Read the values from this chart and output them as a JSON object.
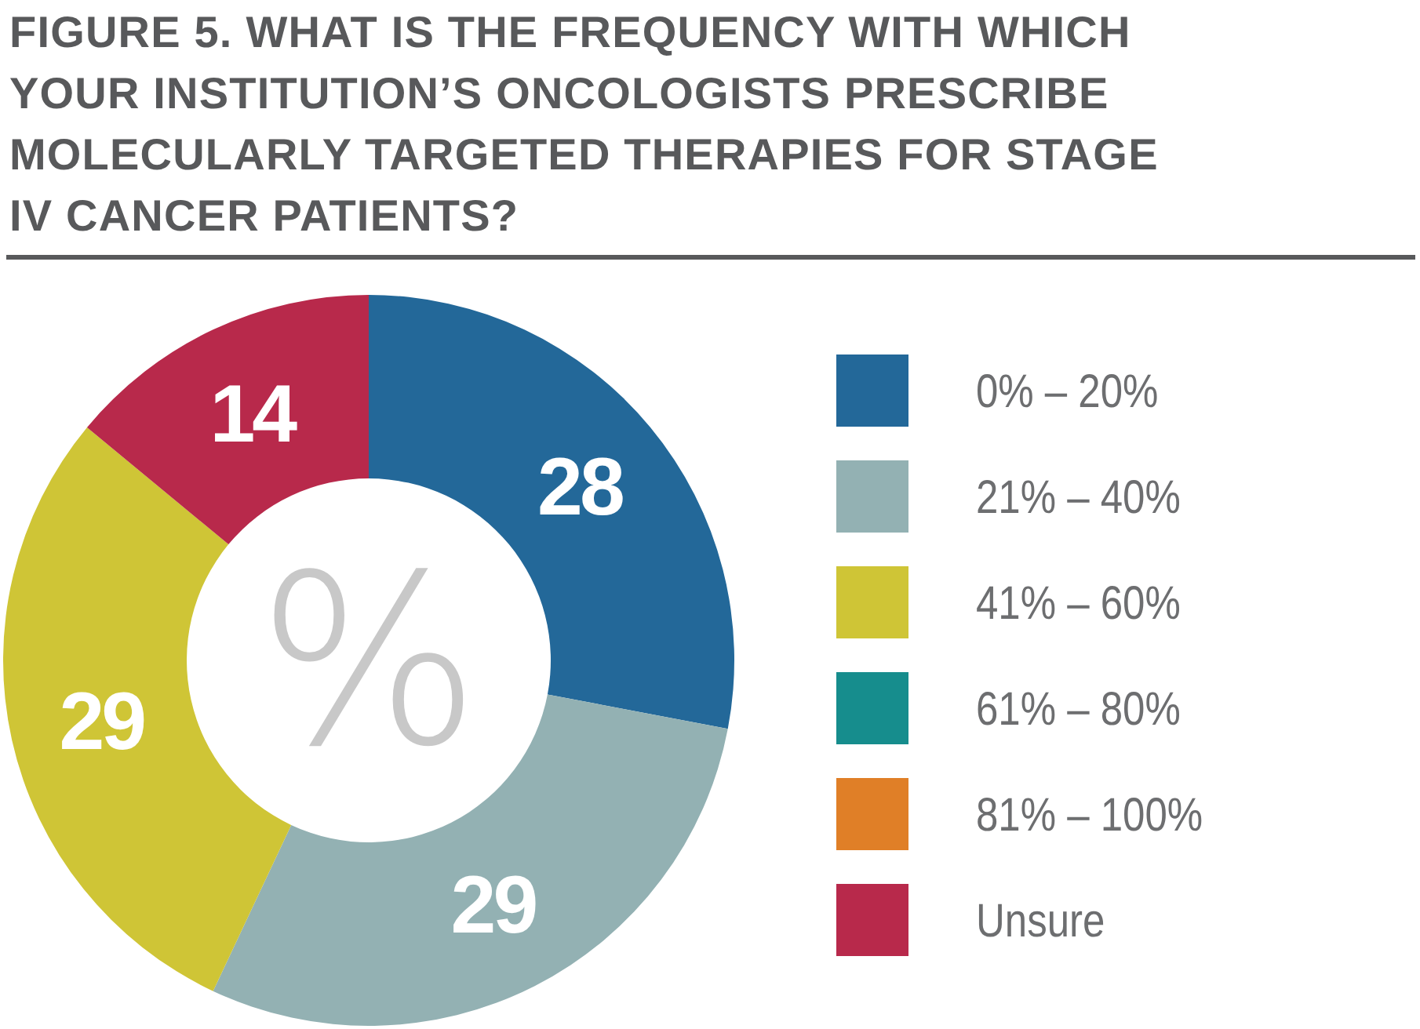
{
  "chart_data": {
    "type": "donut",
    "title": "FIGURE 5. WHAT IS THE FREQUENCY WITH WHICH YOUR INSTITUTION’S ONCOLOGISTS PRESCRIBE MOLECULARLY TARGETED THERAPIES FOR STAGE IV CANCER PATIENTS?",
    "categories": [
      "0% – 20%",
      "21% – 40%",
      "41% – 60%",
      "61% – 80%",
      "81% – 100%",
      "Unsure"
    ],
    "values": [
      28,
      29,
      29,
      0,
      0,
      14
    ],
    "colors": [
      "#236899",
      "#93b1b3",
      "#cfc536",
      "#168d8d",
      "#e07f27",
      "#b8294b"
    ],
    "data_labels": true,
    "legend": "right",
    "annotations": [
      "%"
    ]
  }
}
